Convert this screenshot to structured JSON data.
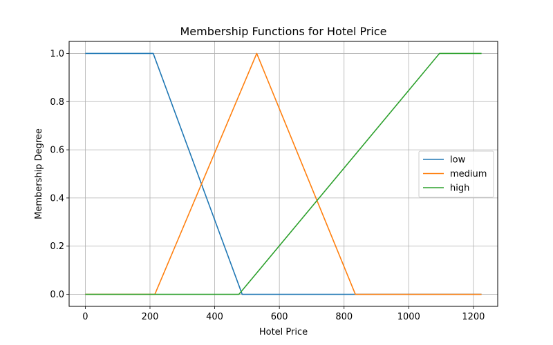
{
  "chart_data": {
    "type": "line",
    "title": "Membership Functions for Hotel Price",
    "xlabel": "Hotel Price",
    "ylabel": "Membership Degree",
    "xlim": [
      -50,
      1275
    ],
    "ylim": [
      -0.05,
      1.05
    ],
    "xticks": [
      0,
      200,
      400,
      600,
      800,
      1000,
      1200
    ],
    "yticks": [
      0.0,
      0.2,
      0.4,
      0.6,
      0.8,
      1.0
    ],
    "xtick_labels": [
      "0",
      "200",
      "400",
      "600",
      "800",
      "1000",
      "1200"
    ],
    "ytick_labels": [
      "0.0",
      "0.2",
      "0.4",
      "0.6",
      "0.8",
      "1.0"
    ],
    "grid": true,
    "legend_position": "center-right",
    "series": [
      {
        "name": "low",
        "color": "#1f77b4",
        "x": [
          0,
          210,
          485,
          1225
        ],
        "y": [
          1.0,
          1.0,
          0.0,
          0.0
        ]
      },
      {
        "name": "medium",
        "color": "#ff7f0e",
        "x": [
          0,
          215,
          530,
          835,
          1225
        ],
        "y": [
          0.0,
          0.0,
          1.0,
          0.0,
          0.0
        ]
      },
      {
        "name": "high",
        "color": "#2ca02c",
        "x": [
          0,
          475,
          1095,
          1225
        ],
        "y": [
          0.0,
          0.0,
          1.0,
          1.0
        ]
      }
    ]
  }
}
